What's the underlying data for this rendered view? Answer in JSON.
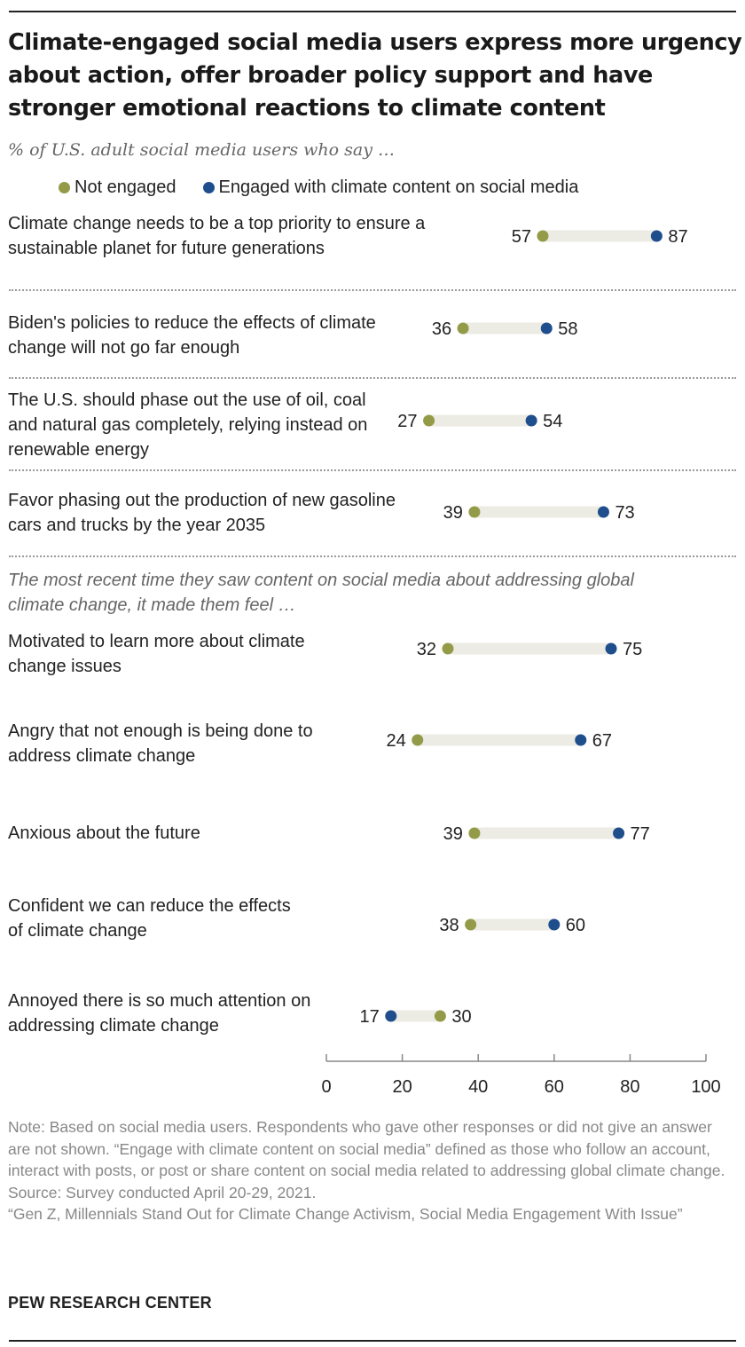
{
  "title": "Climate-engaged social media users express more urgency about action, offer broader policy support and have stronger emotional reactions to climate content",
  "subtitle": "% of U.S. adult social media users who say …",
  "legend": [
    {
      "label": "Not engaged",
      "color": "#949b48"
    },
    {
      "label": "Engaged with climate content on social media",
      "color": "#1f4e8c"
    }
  ],
  "section_heading": "The most recent time they saw content on social media about addressing global climate change, it made them feel …",
  "chart_data": {
    "type": "dot-plot",
    "axis": {
      "min": 0,
      "max": 100,
      "ticks": [
        0,
        20,
        40,
        60,
        80,
        100
      ]
    },
    "series": [
      {
        "name": "Not engaged",
        "color": "#949b48"
      },
      {
        "name": "Engaged with climate content on social media",
        "color": "#1f4e8c"
      }
    ],
    "rows": [
      {
        "label": "Climate change needs to be a top priority to ensure a sustainable planet for future generations",
        "not_engaged": 57,
        "engaged": 87
      },
      {
        "label": "Biden's policies to reduce the effects of climate change will not go far enough",
        "not_engaged": 36,
        "engaged": 58
      },
      {
        "label": "The U.S. should phase out the use of oil, coal and natural gas completely, relying instead on renewable energy",
        "not_engaged": 27,
        "engaged": 54
      },
      {
        "label": "Favor phasing out the production of new gasoline cars and trucks by the year 2035",
        "not_engaged": 39,
        "engaged": 73
      },
      {
        "label": "Motivated to learn more about climate change issues",
        "not_engaged": 32,
        "engaged": 75
      },
      {
        "label": "Angry that not enough is being done to address climate change",
        "not_engaged": 24,
        "engaged": 67
      },
      {
        "label": "Anxious about the future",
        "not_engaged": 39,
        "engaged": 77
      },
      {
        "label": "Confident we can reduce the effects of climate change",
        "not_engaged": 38,
        "engaged": 60
      },
      {
        "label": "Annoyed there is so much attention on addressing climate change",
        "not_engaged": 30,
        "engaged": 17
      }
    ]
  },
  "notes": {
    "note": "Note: Based on social media users. Respondents who gave other responses or did not give an answer are not shown. “Engage with climate content on social media” defined as those who follow an account, interact with posts, or post or share content on social media related to addressing global climate change.",
    "source": "Source: Survey conducted April 20-29, 2021.",
    "report": "“Gen Z, Millennials Stand Out for Climate Change Activism, Social Media Engagement With Issue”"
  },
  "brand": "PEW RESEARCH CENTER"
}
